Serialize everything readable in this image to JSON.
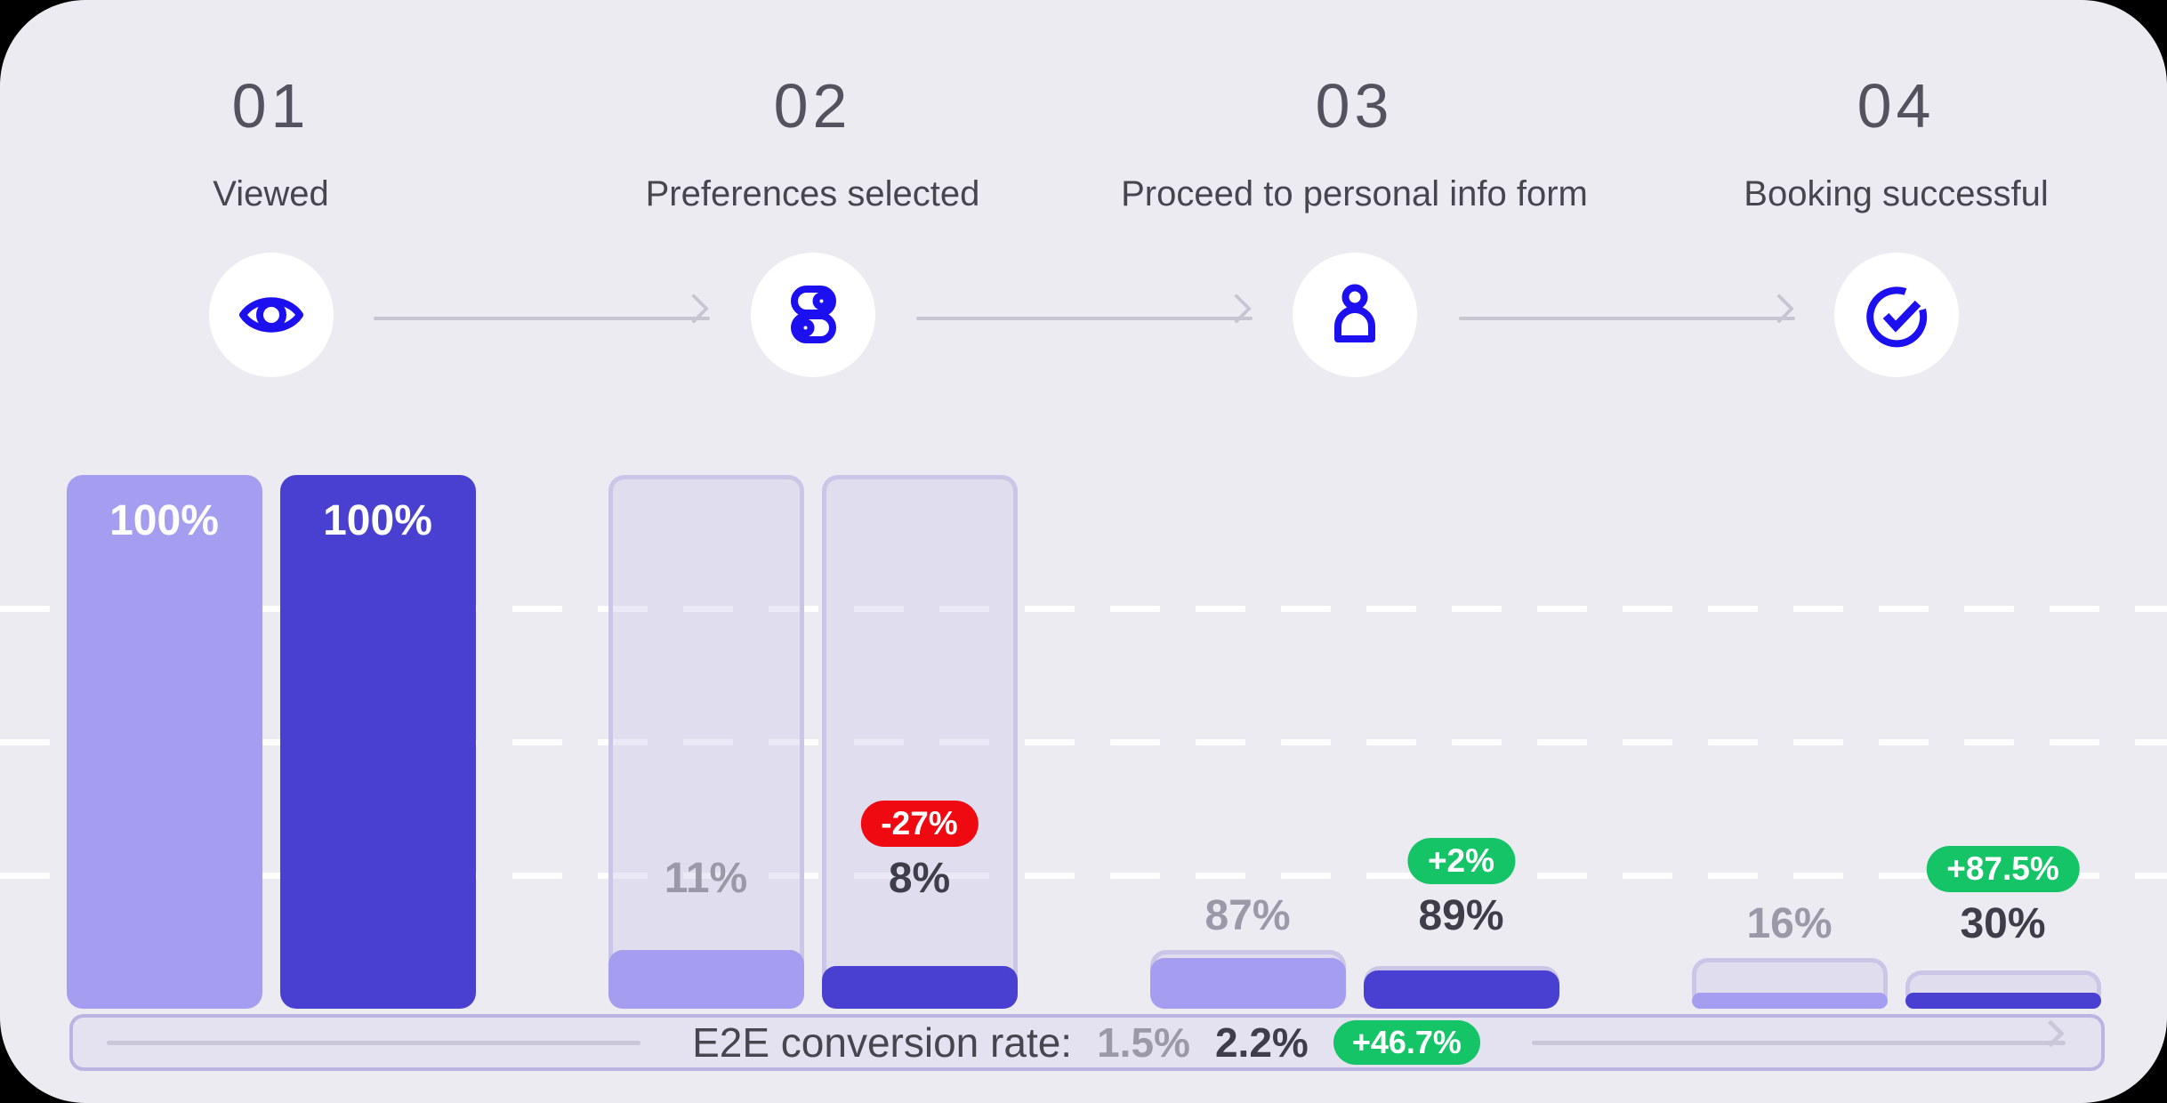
{
  "steps": [
    {
      "number": "01",
      "label": "Viewed",
      "icon": "eye-icon"
    },
    {
      "number": "02",
      "label": "Preferences selected",
      "icon": "toggles-icon"
    },
    {
      "number": "03",
      "label": "Proceed to personal info form",
      "icon": "person-icon"
    },
    {
      "number": "04",
      "label": "Booking successful",
      "icon": "check-circle-icon"
    }
  ],
  "chart_data": {
    "type": "bar",
    "subtype": "funnel-step-conversion",
    "categories": [
      "Viewed",
      "Preferences selected",
      "Proceed to personal info form",
      "Booking successful"
    ],
    "value_basis": "percent of previous step; ghost container height = previous step bar height",
    "series": [
      {
        "name": "series-a-light",
        "color": "#A59EF0",
        "values": [
          100,
          11,
          87,
          16
        ],
        "labels": [
          "100%",
          "11%",
          "87%",
          "16%"
        ]
      },
      {
        "name": "series-b-dark",
        "color": "#4940D1",
        "values": [
          100,
          8,
          89,
          30
        ],
        "labels": [
          "100%",
          "8%",
          "89%",
          "30%"
        ]
      }
    ],
    "delta_badges": [
      null,
      {
        "text": "-27%",
        "sentiment": "negative"
      },
      {
        "text": "+2%",
        "sentiment": "positive"
      },
      {
        "text": "+87.5%",
        "sentiment": "positive"
      }
    ],
    "gridlines_pct": [
      25,
      50,
      75
    ],
    "grid": "dashed-white",
    "legend_position": "none",
    "ylim": [
      0,
      100
    ]
  },
  "footer": {
    "label": "E2E conversion rate:",
    "value_a": "1.5%",
    "value_b": "2.2%",
    "delta_badge": "+46.7%"
  },
  "colors": {
    "card_bg": "#ECEBF2",
    "bar_light": "#A59EF0",
    "bar_dark": "#4940D1",
    "ghost_border": "#CBC6E7",
    "icon_blue": "#1C10F0",
    "badge_red": "#EF0A12",
    "badge_green": "#16C468",
    "label_gray": "#9B99A8",
    "label_dark": "#3E3D4A",
    "arrow_gray": "#C7C5D1"
  }
}
